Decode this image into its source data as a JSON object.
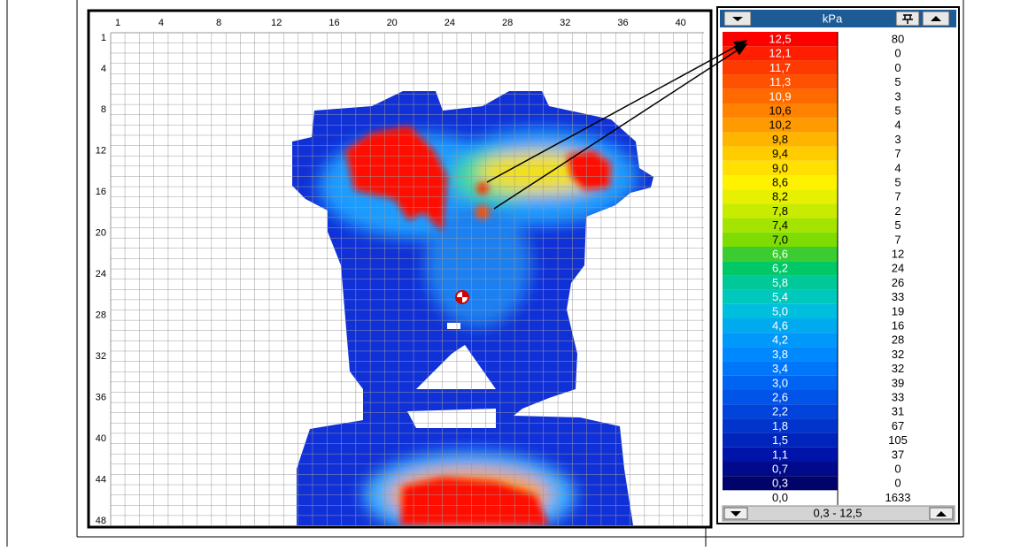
{
  "map": {
    "column_labels": [
      1,
      4,
      8,
      12,
      16,
      20,
      24,
      28,
      32,
      36,
      40
    ],
    "row_labels": [
      1,
      4,
      8,
      12,
      16,
      20,
      24,
      28,
      32,
      36,
      40,
      44,
      48
    ]
  },
  "legend": {
    "unit": "kPa",
    "rows": [
      {
        "label": "12,5",
        "count": 80,
        "color": "#ff0000"
      },
      {
        "label": "12,1",
        "count": 0,
        "color": "#ff1e00"
      },
      {
        "label": "11,7",
        "count": 0,
        "color": "#ff3a00"
      },
      {
        "label": "11,3",
        "count": 5,
        "color": "#ff5200"
      },
      {
        "label": "10,9",
        "count": 3,
        "color": "#ff6a00"
      },
      {
        "label": "10,6",
        "count": 5,
        "color": "#ff8200"
      },
      {
        "label": "10,2",
        "count": 4,
        "color": "#ff9a00"
      },
      {
        "label": "9,8",
        "count": 3,
        "color": "#ffb400"
      },
      {
        "label": "9,4",
        "count": 7,
        "color": "#ffcc00"
      },
      {
        "label": "9,0",
        "count": 4,
        "color": "#ffe000"
      },
      {
        "label": "8,6",
        "count": 5,
        "color": "#fff200"
      },
      {
        "label": "8,2",
        "count": 7,
        "color": "#e6f000"
      },
      {
        "label": "7,8",
        "count": 2,
        "color": "#c8ec00"
      },
      {
        "label": "7,4",
        "count": 5,
        "color": "#a4e400"
      },
      {
        "label": "7,0",
        "count": 7,
        "color": "#7edc00"
      },
      {
        "label": "6,6",
        "count": 12,
        "color": "#3acc30"
      },
      {
        "label": "6,2",
        "count": 24,
        "color": "#00c866"
      },
      {
        "label": "5,8",
        "count": 26,
        "color": "#00c898"
      },
      {
        "label": "5,4",
        "count": 33,
        "color": "#00c8bc"
      },
      {
        "label": "5,0",
        "count": 19,
        "color": "#00bede"
      },
      {
        "label": "4,6",
        "count": 16,
        "color": "#00aaee"
      },
      {
        "label": "4,2",
        "count": 28,
        "color": "#0098fa"
      },
      {
        "label": "3,8",
        "count": 32,
        "color": "#0088ff"
      },
      {
        "label": "3,4",
        "count": 32,
        "color": "#0076fa"
      },
      {
        "label": "3,0",
        "count": 39,
        "color": "#0064f2"
      },
      {
        "label": "2,6",
        "count": 33,
        "color": "#0054e8"
      },
      {
        "label": "2,2",
        "count": 31,
        "color": "#0044dc"
      },
      {
        "label": "1,8",
        "count": 67,
        "color": "#0034cc"
      },
      {
        "label": "1,5",
        "count": 105,
        "color": "#0024bc"
      },
      {
        "label": "1,1",
        "count": 37,
        "color": "#0014aa"
      },
      {
        "label": "0,7",
        "count": 0,
        "color": "#000a8a"
      },
      {
        "label": "0,3",
        "count": 0,
        "color": "#00046a"
      },
      {
        "label": "0,0",
        "count": 1633,
        "color": "#ffffff"
      }
    ],
    "range": "0,3 - 12,5"
  }
}
